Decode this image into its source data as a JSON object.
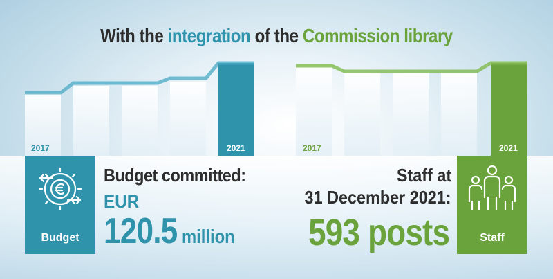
{
  "title": {
    "part1": "With the ",
    "highlight1": "integration",
    "part2": " of the ",
    "highlight2": "Commission library"
  },
  "budget_chart": {
    "start_label": "2017",
    "end_label": "2021",
    "color": "#2e93ab"
  },
  "staff_chart": {
    "start_label": "2017",
    "end_label": "2021",
    "color": "#6aa23b"
  },
  "budget": {
    "badge_label": "Budget",
    "icon": "euro-gear-icon",
    "heading": "Budget committed:",
    "currency": "EUR",
    "amount": "120.5",
    "unit": " million"
  },
  "staff": {
    "badge_label": "Staff",
    "icon": "people-group-icon",
    "heading_line1": "Staff at",
    "heading_line2": "31 December 2021:",
    "count": "593",
    "unit": " posts"
  }
}
